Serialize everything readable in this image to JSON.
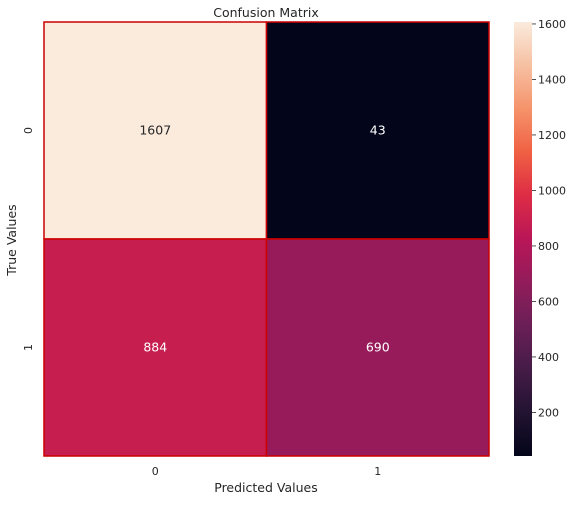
{
  "chart_data": {
    "type": "heatmap",
    "title": "Confusion Matrix",
    "xlabel": "Predicted Values",
    "ylabel": "True Values",
    "x_categories": [
      "0",
      "1"
    ],
    "y_categories": [
      "0",
      "1"
    ],
    "values": [
      [
        1607,
        43
      ],
      [
        884,
        690
      ]
    ],
    "colormap": "rocket",
    "colorbar": {
      "min": 43,
      "max": 1607,
      "ticks": [
        200,
        400,
        600,
        800,
        1000,
        1200,
        1400,
        1600
      ]
    },
    "cell_border_color": "#cc0000"
  }
}
